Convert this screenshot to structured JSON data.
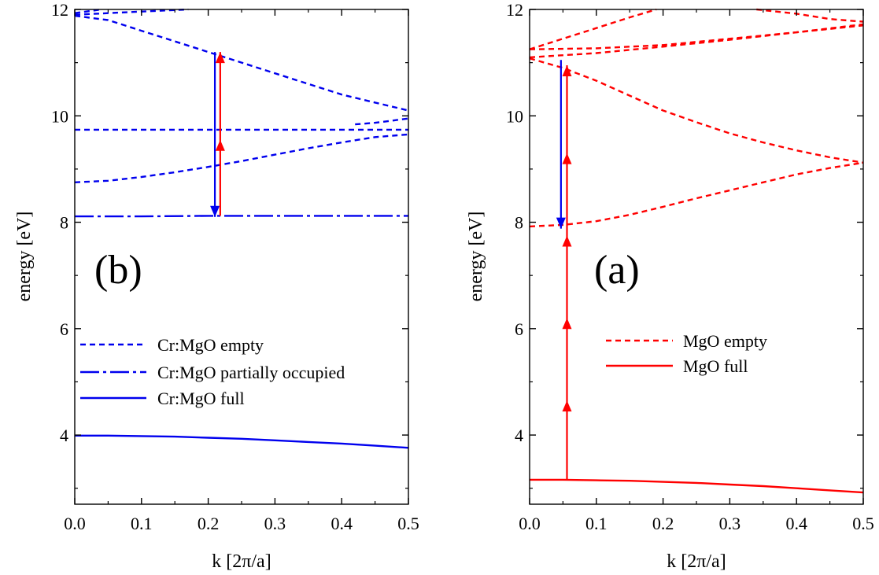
{
  "chart_data": [
    {
      "type": "line",
      "panel_label": "(b)",
      "xlabel": "k [2π/a]",
      "ylabel": "energy [eV]",
      "xlim": [
        0,
        0.5
      ],
      "ylim": [
        2.7,
        12
      ],
      "xticks": [
        0.0,
        0.1,
        0.2,
        0.3,
        0.4,
        0.5
      ],
      "xtick_labels": [
        "0.0",
        "0.1",
        "0.2",
        "0.3",
        "0.4",
        "0.5"
      ],
      "yticks": [
        4,
        6,
        8,
        10,
        12
      ],
      "ytick_labels": [
        "4",
        "6",
        "8",
        "10",
        "12"
      ],
      "grid": false,
      "legend_position": "middle-left",
      "series": [
        {
          "name": "Cr:MgO empty",
          "style": "dashed",
          "color": "#0000ee",
          "x": [
            0,
            0.05,
            0.1,
            0.15,
            0.2,
            0.25,
            0.3,
            0.35,
            0.4,
            0.45,
            0.5
          ],
          "y": [
            8.75,
            8.78,
            8.85,
            8.94,
            9.04,
            9.15,
            9.27,
            9.39,
            9.5,
            9.6,
            9.65
          ]
        },
        {
          "style": "dashed",
          "color": "#0000ee",
          "x": [
            0,
            0.1,
            0.2,
            0.3,
            0.4,
            0.5
          ],
          "y": [
            9.74,
            9.74,
            9.74,
            9.74,
            9.74,
            9.74
          ]
        },
        {
          "style": "dashed",
          "color": "#0000ee",
          "x": [
            0,
            0.05,
            0.1,
            0.15,
            0.2,
            0.25,
            0.3,
            0.35,
            0.4,
            0.45,
            0.5
          ],
          "y": [
            11.88,
            11.8,
            11.6,
            11.4,
            11.2,
            11.0,
            10.8,
            10.6,
            10.4,
            10.25,
            10.1
          ]
        },
        {
          "style": "dashed",
          "color": "#0000ee",
          "x": [
            0,
            0.05,
            0.1,
            0.17
          ],
          "y": [
            11.9,
            11.93,
            11.96,
            12.0
          ]
        },
        {
          "style": "dashed",
          "color": "#0000ee",
          "x": [
            0,
            0.04
          ],
          "y": [
            11.93,
            12.0
          ]
        },
        {
          "style": "dashed",
          "color": "#0000ee",
          "x": [
            0.42,
            0.45,
            0.5
          ],
          "y": [
            9.84,
            9.87,
            9.95
          ]
        },
        {
          "name": "Cr:MgO partially occupied",
          "style": "dashdot",
          "color": "#0000ee",
          "x": [
            0,
            0.1,
            0.2,
            0.3,
            0.4,
            0.5
          ],
          "y": [
            8.11,
            8.11,
            8.12,
            8.12,
            8.12,
            8.12
          ]
        },
        {
          "name": "Cr:MgO full",
          "style": "solid",
          "color": "#0000ee",
          "x": [
            0,
            0.05,
            0.1,
            0.15,
            0.2,
            0.25,
            0.3,
            0.35,
            0.4,
            0.45,
            0.5
          ],
          "y": [
            3.99,
            3.99,
            3.98,
            3.97,
            3.95,
            3.93,
            3.9,
            3.87,
            3.84,
            3.8,
            3.76
          ]
        }
      ],
      "arrows": [
        {
          "color": "#0000ee",
          "x": 0.21,
          "y_from": 11.2,
          "y_to": 8.1,
          "heads": [
            8.1
          ]
        },
        {
          "color": "#ff0000",
          "x": 0.218,
          "y_from": 8.12,
          "y_to": 11.2,
          "heads": [
            9.55,
            11.2
          ]
        }
      ]
    },
    {
      "type": "line",
      "panel_label": "(a)",
      "xlabel": "k [2π/a]",
      "ylabel": "energy [eV]",
      "xlim": [
        0,
        0.5
      ],
      "ylim": [
        2.7,
        12
      ],
      "xticks": [
        0.0,
        0.1,
        0.2,
        0.3,
        0.4,
        0.5
      ],
      "xtick_labels": [
        "0.0",
        "0.1",
        "0.2",
        "0.3",
        "0.4",
        "0.5"
      ],
      "yticks": [
        4,
        6,
        8,
        10,
        12
      ],
      "ytick_labels": [
        "4",
        "6",
        "8",
        "10",
        "12"
      ],
      "grid": false,
      "legend_position": "middle-right",
      "series": [
        {
          "name": "MgO empty",
          "style": "dashed",
          "color": "#ff0000",
          "x": [
            0,
            0.05,
            0.1,
            0.15,
            0.2,
            0.25,
            0.3,
            0.35,
            0.4,
            0.45,
            0.5
          ],
          "y": [
            7.92,
            7.95,
            8.02,
            8.14,
            8.29,
            8.45,
            8.6,
            8.75,
            8.9,
            9.02,
            9.12
          ]
        },
        {
          "style": "dashed",
          "color": "#ff0000",
          "x": [
            0,
            0.05,
            0.1,
            0.15,
            0.2,
            0.25,
            0.3,
            0.35,
            0.4,
            0.45,
            0.5
          ],
          "y": [
            11.08,
            10.9,
            10.66,
            10.38,
            10.1,
            9.88,
            9.67,
            9.5,
            9.35,
            9.22,
            9.12
          ]
        },
        {
          "style": "dashed",
          "color": "#ff0000",
          "x": [
            0,
            0.1,
            0.2,
            0.3,
            0.4,
            0.5
          ],
          "y": [
            11.1,
            11.18,
            11.3,
            11.43,
            11.57,
            11.7
          ]
        },
        {
          "style": "dashed",
          "color": "#ff0000",
          "x": [
            0,
            0.1,
            0.2,
            0.3,
            0.4,
            0.5
          ],
          "y": [
            11.25,
            11.27,
            11.33,
            11.45,
            11.57,
            11.72
          ]
        },
        {
          "style": "dashed",
          "color": "#ff0000",
          "x": [
            0,
            0.05,
            0.1,
            0.15,
            0.19
          ],
          "y": [
            11.25,
            11.45,
            11.65,
            11.85,
            12.0
          ]
        },
        {
          "style": "dashed",
          "color": "#ff0000",
          "x": [
            0.34,
            0.4,
            0.45,
            0.5
          ],
          "y": [
            12.0,
            11.92,
            11.82,
            11.77
          ]
        },
        {
          "name": "MgO full",
          "style": "solid",
          "color": "#ff0000",
          "x": [
            0,
            0.05,
            0.1,
            0.15,
            0.2,
            0.25,
            0.3,
            0.35,
            0.4,
            0.45,
            0.5
          ],
          "y": [
            3.16,
            3.16,
            3.15,
            3.14,
            3.12,
            3.1,
            3.07,
            3.04,
            3.0,
            2.96,
            2.92
          ]
        }
      ],
      "arrows": [
        {
          "color": "#0000ee",
          "x": 0.047,
          "y_from": 11.05,
          "y_to": 7.88,
          "heads": [
            7.88
          ]
        },
        {
          "color": "#ff0000",
          "x": 0.056,
          "y_from": 3.17,
          "y_to": 10.95,
          "heads": [
            4.65,
            6.2,
            7.75,
            9.3,
            10.95
          ]
        }
      ]
    }
  ]
}
